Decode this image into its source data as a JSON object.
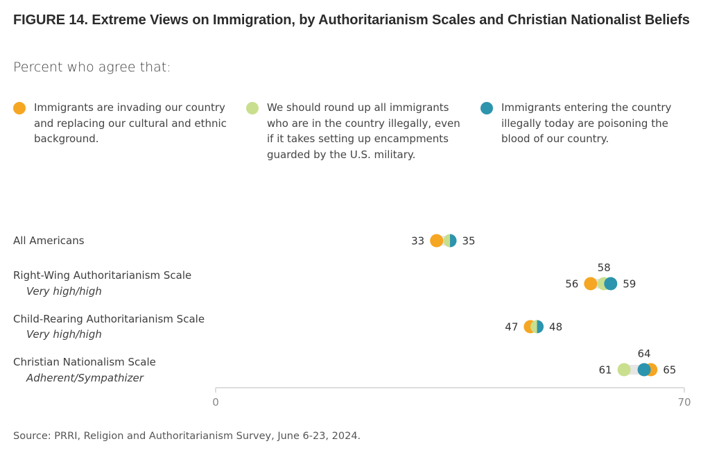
{
  "title": "FIGURE 14.  Extreme Views on Immigration, by Authoritarianism Scales and Christian Nationalist Beliefs",
  "subtitle": "Percent who agree that:",
  "source": "Source: PRRI, Religion and Authoritarianism Survey, June 6-23, 2024.",
  "colors": {
    "invading": "#F5A623",
    "roundup": "#C9DF8E",
    "poisoning": "#2D94AD",
    "track": "#E6E6E6",
    "axis": "#DDDDDD"
  },
  "chart_data": {
    "type": "scatter",
    "subtype": "dot-plot",
    "title": "FIGURE 14.  Extreme Views on Immigration, by Authoritarianism Scales and Christian Nationalist Beliefs",
    "subtitle": "Percent who agree that:",
    "xlim": [
      0,
      70
    ],
    "xticks": [
      0,
      70
    ],
    "grid": false,
    "legend_position": "top",
    "categories": [
      {
        "label": "All Americans",
        "sublabel": ""
      },
      {
        "label": "Right-Wing Authoritarianism Scale",
        "sublabel": "Very high/high"
      },
      {
        "label": "Child-Rearing Authoritarianism Scale",
        "sublabel": "Very high/high"
      },
      {
        "label": "Christian Nationalism Scale",
        "sublabel": "Adherent/Sympathizer"
      }
    ],
    "series": [
      {
        "key": "invading",
        "name": "Immigrants are invading our country and replacing our cultural and ethnic background.",
        "color": "#F5A623",
        "values": [
          33,
          56,
          47,
          65
        ]
      },
      {
        "key": "roundup",
        "name": "We should round up all immigrants who are in the country illegally, even if it takes setting up encampments guarded by the U.S. military.",
        "color": "#C9DF8E",
        "values": [
          35,
          58,
          48,
          61
        ]
      },
      {
        "key": "poisoning",
        "name": "Immigrants entering the country illegally today are poisoning the blood of our country.",
        "color": "#2D94AD",
        "values": [
          35,
          59,
          48,
          64
        ]
      }
    ],
    "data_labels": [
      {
        "row": 0,
        "labels": [
          {
            "text": "33",
            "value": 33,
            "pos": "left"
          },
          {
            "text": "35",
            "value": 35,
            "pos": "right"
          }
        ]
      },
      {
        "row": 1,
        "labels": [
          {
            "text": "56",
            "value": 56,
            "pos": "left"
          },
          {
            "text": "58",
            "value": 58,
            "pos": "above"
          },
          {
            "text": "59",
            "value": 59,
            "pos": "right"
          }
        ]
      },
      {
        "row": 2,
        "labels": [
          {
            "text": "47",
            "value": 47,
            "pos": "left"
          },
          {
            "text": "48",
            "value": 48,
            "pos": "right"
          }
        ]
      },
      {
        "row": 3,
        "labels": [
          {
            "text": "61",
            "value": 61,
            "pos": "left"
          },
          {
            "text": "64",
            "value": 64,
            "pos": "above"
          },
          {
            "text": "65",
            "value": 65,
            "pos": "right"
          }
        ]
      }
    ]
  }
}
